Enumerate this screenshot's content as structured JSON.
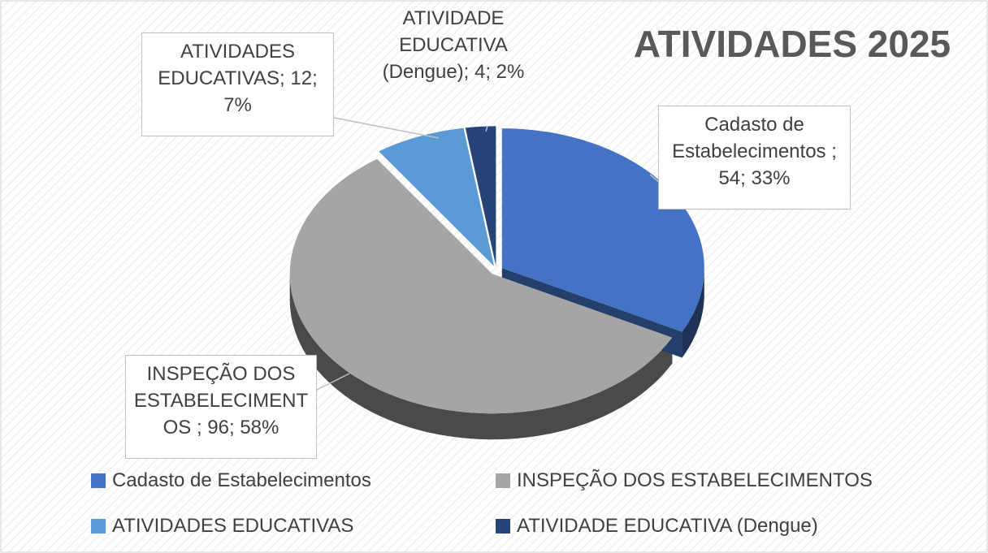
{
  "chart_data": {
    "type": "pie",
    "title": "ATIVIDADES 2025",
    "categories": [
      "Cadasto de Estabelecimentos",
      "INSPEÇÃO DOS ESTABELECIMENTOS",
      "ATIVIDADES EDUCATIVAS",
      "ATIVIDADE EDUCATIVA (Dengue)"
    ],
    "values": [
      54,
      96,
      12,
      4
    ],
    "value_labels": [
      "Cadasto de Estabelecimentos ; 54; 33%",
      "INSPEÇÃO DOS ESTABELECIMENTOS ; 96; 58%",
      "ATIVIDADES EDUCATIVAS; 12; 7%",
      "ATIVIDADE EDUCATIVA (Dengue); 4; 2%"
    ],
    "colors": [
      "#4472c4",
      "#a5a5a5",
      "#5b9bd5",
      "#264478"
    ],
    "legend": "bottom"
  }
}
